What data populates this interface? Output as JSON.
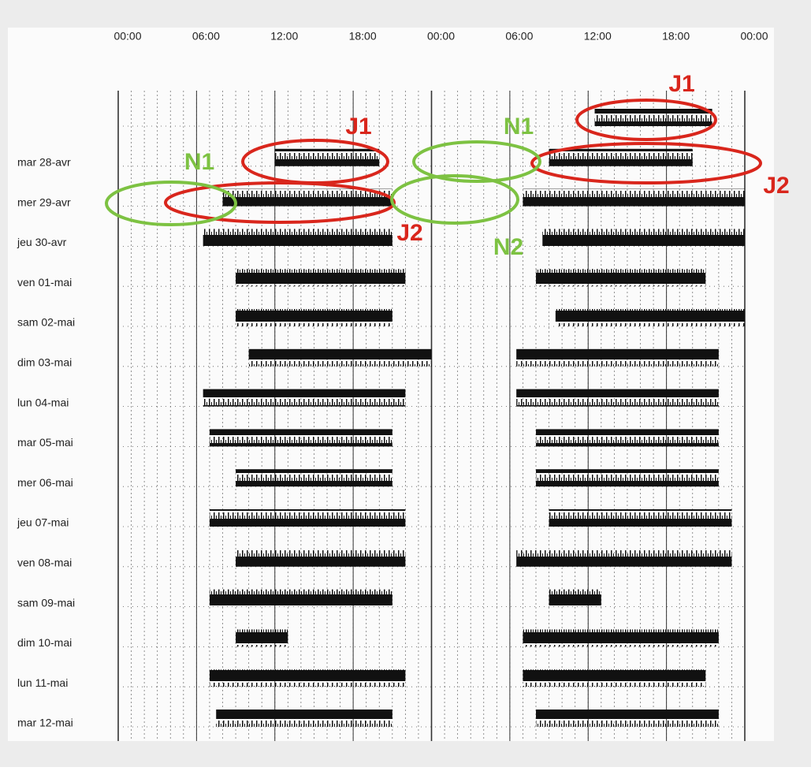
{
  "chart_data": {
    "type": "actogram",
    "xlim": [
      0,
      48
    ],
    "xticks": [
      {
        "value": 0,
        "label": "00:00"
      },
      {
        "value": 6,
        "label": "06:00"
      },
      {
        "value": 12,
        "label": "12:00"
      },
      {
        "value": 18,
        "label": "18:00"
      },
      {
        "value": 24,
        "label": "00:00"
      },
      {
        "value": 30,
        "label": "06:00"
      },
      {
        "value": 36,
        "label": "12:00"
      },
      {
        "value": 42,
        "label": "18:00"
      },
      {
        "value": 48,
        "label": "00:00"
      }
    ],
    "color": "#111111",
    "rows": [
      {
        "label": null,
        "spans": [
          [
            36.5,
            45.5
          ]
        ]
      },
      {
        "label": "mar 28-avr",
        "spans": [
          [
            12,
            20
          ],
          [
            33,
            44
          ]
        ]
      },
      {
        "label": "mer 29-avr",
        "spans": [
          [
            8,
            21
          ],
          [
            31,
            48
          ]
        ]
      },
      {
        "label": "jeu 30-avr",
        "spans": [
          [
            6.5,
            21
          ],
          [
            32.5,
            48
          ]
        ]
      },
      {
        "label": "ven 01-mai",
        "spans": [
          [
            9,
            22
          ],
          [
            32,
            45
          ]
        ]
      },
      {
        "label": "sam 02-mai",
        "spans": [
          [
            9,
            21
          ],
          [
            33.5,
            48
          ]
        ]
      },
      {
        "label": "dim 03-mai",
        "spans": [
          [
            10,
            24
          ],
          [
            30.5,
            46
          ]
        ]
      },
      {
        "label": "lun 04-mai",
        "spans": [
          [
            6.5,
            22
          ],
          [
            30.5,
            46
          ]
        ]
      },
      {
        "label": "mar 05-mai",
        "spans": [
          [
            7,
            21
          ],
          [
            32,
            46
          ]
        ]
      },
      {
        "label": "mer 06-mai",
        "spans": [
          [
            9,
            21
          ],
          [
            32,
            46
          ]
        ]
      },
      {
        "label": "jeu 07-mai",
        "spans": [
          [
            7,
            22
          ],
          [
            33,
            47
          ]
        ]
      },
      {
        "label": "ven 08-mai",
        "spans": [
          [
            9,
            22
          ],
          [
            30.5,
            47
          ]
        ]
      },
      {
        "label": "sam 09-mai",
        "spans": [
          [
            7,
            21
          ],
          [
            33,
            37
          ]
        ]
      },
      {
        "label": "dim 10-mai",
        "spans": [
          [
            9,
            13
          ],
          [
            31,
            46
          ]
        ]
      },
      {
        "label": "lun 11-mai",
        "spans": [
          [
            7,
            22
          ],
          [
            31,
            45
          ]
        ]
      },
      {
        "label": "mar 12-mai",
        "spans": [
          [
            7.5,
            21
          ],
          [
            32,
            46
          ]
        ]
      }
    ],
    "annotations": [
      {
        "text": "N1",
        "color": "#7dc242"
      },
      {
        "text": "J1",
        "color": "#d9261c"
      },
      {
        "text": "N1",
        "color": "#7dc242"
      },
      {
        "text": "J1",
        "color": "#d9261c"
      },
      {
        "text": "J2",
        "color": "#d9261c"
      },
      {
        "text": "J2",
        "color": "#d9261c"
      },
      {
        "text": "N2",
        "color": "#7dc242"
      }
    ]
  }
}
